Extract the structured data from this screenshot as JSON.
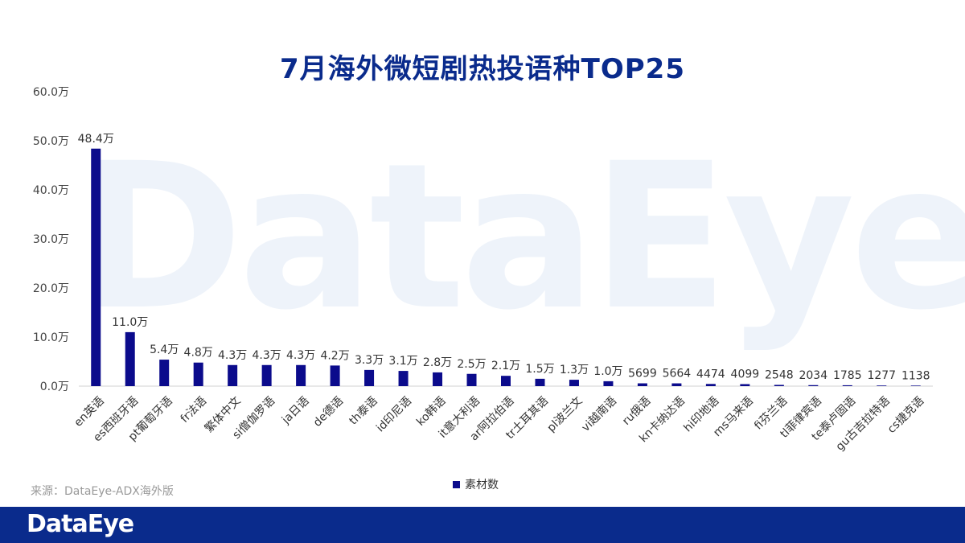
{
  "watermark": "DataEye",
  "title": "7月海外微短剧热投语种TOP25",
  "source": "来源：DataEye-ADX海外版",
  "footer_logo": "DataEye",
  "legend": {
    "label": "素材数",
    "color": "#0b0b8c"
  },
  "chart_data": {
    "type": "bar",
    "title": "7月海外微短剧热投语种TOP25",
    "categories": [
      "en英语",
      "es西班牙语",
      "pt葡萄牙语",
      "fr法语",
      "繁体中文",
      "si僧伽罗语",
      "ja日语",
      "de德语",
      "th泰语",
      "id印尼语",
      "ko韩语",
      "it意大利语",
      "ar阿拉伯语",
      "tr土耳其语",
      "pl波兰文",
      "vi越南语",
      "ru俄语",
      "kn卡纳达语",
      "hi印地语",
      "ms马来语",
      "fi芬兰语",
      "tl菲律宾语",
      "te泰卢固语",
      "gu古吉拉特语",
      "cs捷克语"
    ],
    "series": [
      {
        "name": "素材数",
        "values": [
          484000,
          110000,
          54000,
          48000,
          43000,
          43000,
          43000,
          42000,
          33000,
          31000,
          28000,
          25000,
          21000,
          15000,
          13000,
          10000,
          5699,
          5664,
          4474,
          4099,
          2548,
          2034,
          1785,
          1277,
          1138
        ],
        "labels": [
          "48.4万",
          "11.0万",
          "5.4万",
          "4.8万",
          "4.3万",
          "4.3万",
          "4.3万",
          "4.2万",
          "3.3万",
          "3.1万",
          "2.8万",
          "2.5万",
          "2.1万",
          "1.5万",
          "1.3万",
          "1.0万",
          "5699",
          "5664",
          "4474",
          "4099",
          "2548",
          "2034",
          "1785",
          "1277",
          "1138"
        ]
      }
    ],
    "yticks": [
      "0.0万",
      "10.0万",
      "20.0万",
      "30.0万",
      "40.0万",
      "50.0万",
      "60.0万"
    ],
    "ylim": [
      0,
      600000
    ],
    "bar_color": "#0b0b8c",
    "grid": false,
    "legend_position": "bottom"
  }
}
